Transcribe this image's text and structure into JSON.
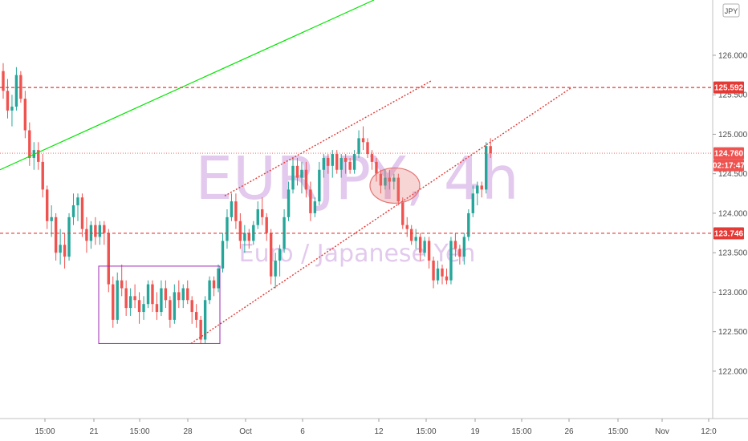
{
  "chart_data": {
    "type": "candlestick",
    "symbol": "EURJPY",
    "interval": "4h",
    "watermark_symbol": "EURJPY, 4h",
    "watermark_description": "Euro / Japanese Yen",
    "currency_badge": "JPY",
    "ylim": [
      121.4,
      126.7
    ],
    "y_ticks": [
      "126.000",
      "125.500",
      "125.000",
      "124.500",
      "124.000",
      "123.500",
      "123.000",
      "122.500",
      "122.000"
    ],
    "x_tick_labels": [
      "15:00",
      "21",
      "15:00",
      "28",
      "Oct",
      "6",
      "12",
      "15:00",
      "19",
      "15:00",
      "26",
      "15:00",
      "Nov",
      "12:0"
    ],
    "grid": false,
    "candles": [
      [
        125.8,
        125.9,
        125.45,
        125.55
      ],
      [
        125.55,
        125.7,
        125.2,
        125.3
      ],
      [
        125.3,
        125.5,
        125.1,
        125.35
      ],
      [
        125.35,
        125.85,
        125.3,
        125.75
      ],
      [
        125.75,
        125.8,
        125.4,
        125.45
      ],
      [
        125.45,
        125.55,
        124.95,
        125.05
      ],
      [
        125.05,
        125.15,
        124.6,
        124.7
      ],
      [
        124.7,
        124.9,
        124.55,
        124.8
      ],
      [
        124.8,
        124.9,
        124.55,
        124.65
      ],
      [
        124.65,
        124.75,
        124.2,
        124.3
      ],
      [
        124.3,
        124.35,
        123.8,
        123.9
      ],
      [
        123.9,
        124.1,
        123.7,
        123.95
      ],
      [
        123.95,
        124.0,
        123.4,
        123.5
      ],
      [
        123.5,
        123.8,
        123.35,
        123.6
      ],
      [
        123.6,
        123.75,
        123.3,
        123.45
      ],
      [
        123.45,
        124.0,
        123.4,
        123.95
      ],
      [
        123.95,
        124.25,
        123.85,
        124.1
      ],
      [
        124.1,
        124.25,
        123.9,
        124.2
      ],
      [
        124.2,
        124.25,
        123.7,
        123.8
      ],
      [
        123.8,
        123.95,
        123.5,
        123.65
      ],
      [
        123.65,
        123.9,
        123.55,
        123.85
      ],
      [
        123.85,
        123.95,
        123.6,
        123.7
      ],
      [
        123.7,
        123.9,
        123.6,
        123.85
      ],
      [
        123.85,
        123.9,
        123.6,
        123.75
      ],
      [
        123.75,
        123.8,
        123.0,
        123.1
      ],
      [
        123.1,
        123.2,
        122.55,
        122.65
      ],
      [
        122.65,
        123.25,
        122.6,
        123.15
      ],
      [
        123.15,
        123.35,
        122.95,
        123.05
      ],
      [
        123.05,
        123.15,
        122.7,
        122.8
      ],
      [
        122.8,
        123.05,
        122.7,
        122.95
      ],
      [
        122.95,
        123.1,
        122.8,
        122.9
      ],
      [
        122.9,
        123.0,
        122.6,
        122.75
      ],
      [
        122.75,
        122.95,
        122.65,
        122.85
      ],
      [
        122.85,
        123.15,
        122.8,
        123.1
      ],
      [
        123.1,
        123.15,
        122.75,
        122.85
      ],
      [
        122.85,
        123.0,
        122.65,
        122.75
      ],
      [
        122.75,
        123.15,
        122.7,
        123.05
      ],
      [
        123.05,
        123.15,
        122.8,
        122.9
      ],
      [
        122.9,
        122.95,
        122.55,
        122.65
      ],
      [
        122.65,
        123.1,
        122.6,
        123.0
      ],
      [
        123.0,
        123.15,
        122.8,
        122.9
      ],
      [
        122.9,
        123.1,
        122.8,
        123.05
      ],
      [
        123.05,
        123.15,
        122.85,
        122.9
      ],
      [
        122.9,
        122.95,
        122.6,
        122.75
      ],
      [
        122.75,
        122.85,
        122.55,
        122.65
      ],
      [
        122.65,
        122.7,
        122.35,
        122.4
      ],
      [
        122.4,
        122.95,
        122.35,
        122.9
      ],
      [
        122.9,
        123.2,
        122.85,
        123.15
      ],
      [
        123.15,
        123.2,
        122.95,
        123.05
      ],
      [
        123.05,
        123.35,
        123.0,
        123.3
      ],
      [
        123.3,
        123.75,
        123.25,
        123.65
      ],
      [
        123.65,
        124.05,
        123.55,
        123.95
      ],
      [
        123.95,
        124.25,
        123.9,
        124.15
      ],
      [
        124.15,
        124.25,
        123.8,
        123.9
      ],
      [
        123.9,
        124.0,
        123.55,
        123.65
      ],
      [
        123.65,
        123.85,
        123.5,
        123.75
      ],
      [
        123.75,
        123.8,
        123.55,
        123.65
      ],
      [
        123.65,
        123.9,
        123.6,
        123.85
      ],
      [
        123.85,
        124.15,
        123.8,
        124.05
      ],
      [
        124.05,
        124.2,
        123.85,
        123.95
      ],
      [
        123.95,
        124.0,
        123.65,
        123.75
      ],
      [
        123.75,
        123.8,
        123.1,
        123.2
      ],
      [
        123.2,
        123.5,
        123.05,
        123.4
      ],
      [
        123.4,
        123.6,
        123.2,
        123.55
      ],
      [
        123.55,
        124.05,
        123.5,
        123.95
      ],
      [
        123.95,
        124.4,
        123.9,
        124.3
      ],
      [
        124.3,
        124.7,
        124.25,
        124.6
      ],
      [
        124.6,
        124.7,
        124.35,
        124.45
      ],
      [
        124.45,
        124.65,
        124.25,
        124.55
      ],
      [
        124.55,
        124.65,
        124.2,
        124.3
      ],
      [
        124.3,
        124.4,
        123.9,
        124.0
      ],
      [
        124.0,
        124.2,
        123.95,
        124.15
      ],
      [
        124.15,
        124.65,
        124.1,
        124.55
      ],
      [
        124.55,
        124.75,
        124.45,
        124.7
      ],
      [
        124.7,
        124.75,
        124.5,
        124.6
      ],
      [
        124.6,
        124.8,
        124.45,
        124.75
      ],
      [
        124.75,
        124.8,
        124.5,
        124.55
      ],
      [
        124.55,
        124.75,
        124.45,
        124.7
      ],
      [
        124.7,
        124.75,
        124.5,
        124.65
      ],
      [
        124.65,
        124.7,
        124.5,
        124.55
      ],
      [
        124.55,
        124.8,
        124.5,
        124.75
      ],
      [
        124.75,
        125.05,
        124.7,
        124.95
      ],
      [
        124.95,
        125.1,
        124.8,
        124.9
      ],
      [
        124.9,
        124.95,
        124.7,
        124.75
      ],
      [
        124.75,
        124.8,
        124.55,
        124.65
      ],
      [
        124.65,
        124.7,
        124.4,
        124.5
      ],
      [
        124.5,
        124.55,
        124.25,
        124.35
      ],
      [
        124.35,
        124.55,
        124.3,
        124.45
      ],
      [
        124.45,
        124.55,
        124.3,
        124.4
      ],
      [
        124.4,
        124.5,
        124.3,
        124.45
      ],
      [
        124.45,
        124.5,
        124.1,
        124.15
      ],
      [
        124.15,
        124.2,
        123.8,
        123.85
      ],
      [
        123.85,
        123.95,
        123.7,
        123.8
      ],
      [
        123.8,
        123.85,
        123.6,
        123.65
      ],
      [
        123.65,
        123.8,
        123.55,
        123.7
      ],
      [
        123.7,
        123.75,
        123.4,
        123.5
      ],
      [
        123.5,
        123.7,
        123.45,
        123.65
      ],
      [
        123.65,
        123.7,
        123.3,
        123.4
      ],
      [
        123.4,
        123.45,
        123.05,
        123.15
      ],
      [
        123.15,
        123.4,
        123.1,
        123.3
      ],
      [
        123.3,
        123.35,
        123.1,
        123.2
      ],
      [
        123.2,
        123.3,
        123.1,
        123.15
      ],
      [
        123.15,
        123.7,
        123.1,
        123.65
      ],
      [
        123.65,
        123.75,
        123.45,
        123.55
      ],
      [
        123.55,
        123.6,
        123.35,
        123.45
      ],
      [
        123.45,
        123.75,
        123.35,
        123.7
      ],
      [
        123.7,
        124.05,
        123.65,
        124.0
      ],
      [
        124.0,
        124.35,
        123.95,
        124.25
      ],
      [
        124.25,
        124.4,
        124.1,
        124.35
      ],
      [
        124.35,
        124.4,
        124.2,
        124.3
      ],
      [
        124.3,
        124.9,
        124.25,
        124.85
      ],
      [
        124.85,
        124.95,
        124.7,
        124.76
      ]
    ],
    "horizontal_levels": [
      {
        "value": 125.592,
        "label": "125.592",
        "style": "dashed",
        "color": "#e53935"
      },
      {
        "value": 123.746,
        "label": "123.746",
        "style": "dashed",
        "color": "#e53935"
      }
    ],
    "last_price": {
      "value": 124.76,
      "label": "124.760",
      "countdown": "02:17:47",
      "color": "#ef5350"
    },
    "trendline_color": "#00e600",
    "channel_color": "#e53935",
    "range_box_color": "#9c27b0",
    "ellipse_color": "#e57373",
    "up_color": "#26a69a",
    "down_color": "#ef5350"
  }
}
